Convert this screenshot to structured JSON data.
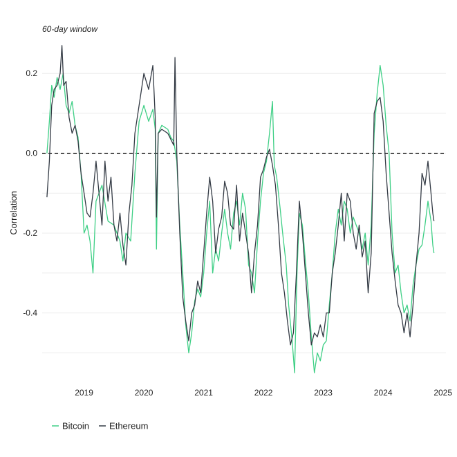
{
  "chart_data": {
    "type": "line",
    "title": "",
    "subtitle": "60-day window",
    "xlabel": "",
    "ylabel": "Correlation",
    "xlim": [
      2018.3,
      2025.05
    ],
    "ylim": [
      -0.56,
      0.28
    ],
    "x_ticks": [
      2019,
      2020,
      2021,
      2022,
      2023,
      2024,
      2025
    ],
    "x_tick_labels": [
      "2019",
      "2020",
      "2021",
      "2022",
      "2023",
      "2024",
      "2025"
    ],
    "y_ticks": [
      0.2,
      0.0,
      -0.2,
      -0.4
    ],
    "y_tick_labels": [
      "0.2",
      "0.0",
      "-0.2",
      "-0.4"
    ],
    "reference_line": {
      "y": 0.0,
      "style": "dashed",
      "color": "#000000"
    },
    "grid": "horizontal",
    "legend_position": "bottom-left",
    "series": [
      {
        "name": "Bitcoin",
        "color": "#3ecf85",
        "points": [
          [
            2018.38,
            0.0
          ],
          [
            2018.42,
            0.08
          ],
          [
            2018.46,
            0.17
          ],
          [
            2018.5,
            0.14
          ],
          [
            2018.55,
            0.19
          ],
          [
            2018.6,
            0.16
          ],
          [
            2018.65,
            0.2
          ],
          [
            2018.7,
            0.12
          ],
          [
            2018.75,
            0.1
          ],
          [
            2018.8,
            0.13
          ],
          [
            2018.85,
            0.07
          ],
          [
            2018.9,
            0.04
          ],
          [
            2018.95,
            -0.05
          ],
          [
            2019.0,
            -0.2
          ],
          [
            2019.05,
            -0.18
          ],
          [
            2019.1,
            -0.22
          ],
          [
            2019.15,
            -0.3
          ],
          [
            2019.2,
            -0.12
          ],
          [
            2019.3,
            -0.08
          ],
          [
            2019.4,
            -0.17
          ],
          [
            2019.5,
            -0.18
          ],
          [
            2019.6,
            -0.22
          ],
          [
            2019.65,
            -0.27
          ],
          [
            2019.7,
            -0.2
          ],
          [
            2019.78,
            -0.22
          ],
          [
            2019.85,
            -0.05
          ],
          [
            2019.92,
            0.08
          ],
          [
            2020.0,
            0.12
          ],
          [
            2020.08,
            0.08
          ],
          [
            2020.15,
            0.11
          ],
          [
            2020.19,
            0.06
          ],
          [
            2020.21,
            -0.24
          ],
          [
            2020.24,
            0.05
          ],
          [
            2020.3,
            0.07
          ],
          [
            2020.4,
            0.06
          ],
          [
            2020.45,
            0.04
          ],
          [
            2020.5,
            0.03
          ],
          [
            2020.55,
            -0.02
          ],
          [
            2020.6,
            -0.18
          ],
          [
            2020.65,
            -0.3
          ],
          [
            2020.7,
            -0.43
          ],
          [
            2020.75,
            -0.5
          ],
          [
            2020.8,
            -0.45
          ],
          [
            2020.85,
            -0.37
          ],
          [
            2020.9,
            -0.34
          ],
          [
            2020.95,
            -0.36
          ],
          [
            2021.0,
            -0.3
          ],
          [
            2021.05,
            -0.2
          ],
          [
            2021.1,
            -0.12
          ],
          [
            2021.15,
            -0.3
          ],
          [
            2021.2,
            -0.24
          ],
          [
            2021.25,
            -0.27
          ],
          [
            2021.3,
            -0.2
          ],
          [
            2021.35,
            -0.14
          ],
          [
            2021.4,
            -0.2
          ],
          [
            2021.45,
            -0.24
          ],
          [
            2021.5,
            -0.15
          ],
          [
            2021.55,
            -0.12
          ],
          [
            2021.6,
            -0.18
          ],
          [
            2021.65,
            -0.1
          ],
          [
            2021.7,
            -0.14
          ],
          [
            2021.75,
            -0.28
          ],
          [
            2021.8,
            -0.3
          ],
          [
            2021.85,
            -0.35
          ],
          [
            2021.9,
            -0.22
          ],
          [
            2021.95,
            -0.12
          ],
          [
            2022.0,
            -0.05
          ],
          [
            2022.05,
            -0.02
          ],
          [
            2022.1,
            0.05
          ],
          [
            2022.15,
            0.13
          ],
          [
            2022.18,
            -0.03
          ],
          [
            2022.22,
            -0.06
          ],
          [
            2022.28,
            -0.14
          ],
          [
            2022.32,
            -0.2
          ],
          [
            2022.38,
            -0.28
          ],
          [
            2022.42,
            -0.38
          ],
          [
            2022.48,
            -0.47
          ],
          [
            2022.52,
            -0.55
          ],
          [
            2022.56,
            -0.3
          ],
          [
            2022.6,
            -0.15
          ],
          [
            2022.65,
            -0.18
          ],
          [
            2022.7,
            -0.27
          ],
          [
            2022.75,
            -0.35
          ],
          [
            2022.8,
            -0.46
          ],
          [
            2022.85,
            -0.55
          ],
          [
            2022.9,
            -0.5
          ],
          [
            2022.95,
            -0.52
          ],
          [
            2023.0,
            -0.48
          ],
          [
            2023.05,
            -0.47
          ],
          [
            2023.1,
            -0.38
          ],
          [
            2023.15,
            -0.3
          ],
          [
            2023.2,
            -0.2
          ],
          [
            2023.25,
            -0.14
          ],
          [
            2023.3,
            -0.18
          ],
          [
            2023.35,
            -0.12
          ],
          [
            2023.4,
            -0.14
          ],
          [
            2023.45,
            -0.2
          ],
          [
            2023.5,
            -0.16
          ],
          [
            2023.55,
            -0.18
          ],
          [
            2023.6,
            -0.2
          ],
          [
            2023.65,
            -0.24
          ],
          [
            2023.7,
            -0.2
          ],
          [
            2023.75,
            -0.28
          ],
          [
            2023.8,
            -0.18
          ],
          [
            2023.85,
            0.05
          ],
          [
            2023.9,
            0.15
          ],
          [
            2023.95,
            0.22
          ],
          [
            2024.0,
            0.17
          ],
          [
            2024.05,
            0.07
          ],
          [
            2024.1,
            0.0
          ],
          [
            2024.15,
            -0.2
          ],
          [
            2024.2,
            -0.3
          ],
          [
            2024.25,
            -0.28
          ],
          [
            2024.3,
            -0.35
          ],
          [
            2024.35,
            -0.4
          ],
          [
            2024.4,
            -0.38
          ],
          [
            2024.45,
            -0.42
          ],
          [
            2024.5,
            -0.33
          ],
          [
            2024.55,
            -0.28
          ],
          [
            2024.6,
            -0.24
          ],
          [
            2024.65,
            -0.23
          ],
          [
            2024.7,
            -0.18
          ],
          [
            2024.75,
            -0.12
          ],
          [
            2024.8,
            -0.17
          ],
          [
            2024.83,
            -0.23
          ],
          [
            2024.85,
            -0.25
          ]
        ]
      },
      {
        "name": "Ethereum",
        "color": "#333a44",
        "points": [
          [
            2018.38,
            -0.11
          ],
          [
            2018.42,
            -0.02
          ],
          [
            2018.46,
            0.12
          ],
          [
            2018.5,
            0.16
          ],
          [
            2018.55,
            0.17
          ],
          [
            2018.6,
            0.2
          ],
          [
            2018.63,
            0.27
          ],
          [
            2018.66,
            0.17
          ],
          [
            2018.7,
            0.18
          ],
          [
            2018.75,
            0.09
          ],
          [
            2018.8,
            0.05
          ],
          [
            2018.85,
            0.07
          ],
          [
            2018.9,
            0.03
          ],
          [
            2018.95,
            -0.05
          ],
          [
            2019.0,
            -0.1
          ],
          [
            2019.05,
            -0.15
          ],
          [
            2019.1,
            -0.16
          ],
          [
            2019.15,
            -0.1
          ],
          [
            2019.2,
            -0.02
          ],
          [
            2019.25,
            -0.1
          ],
          [
            2019.3,
            -0.18
          ],
          [
            2019.35,
            -0.02
          ],
          [
            2019.4,
            -0.12
          ],
          [
            2019.45,
            -0.06
          ],
          [
            2019.5,
            -0.18
          ],
          [
            2019.55,
            -0.22
          ],
          [
            2019.6,
            -0.15
          ],
          [
            2019.65,
            -0.23
          ],
          [
            2019.7,
            -0.28
          ],
          [
            2019.75,
            -0.15
          ],
          [
            2019.8,
            -0.08
          ],
          [
            2019.85,
            0.05
          ],
          [
            2019.92,
            0.12
          ],
          [
            2020.0,
            0.2
          ],
          [
            2020.08,
            0.16
          ],
          [
            2020.15,
            0.22
          ],
          [
            2020.19,
            0.09
          ],
          [
            2020.21,
            -0.16
          ],
          [
            2020.24,
            0.05
          ],
          [
            2020.3,
            0.06
          ],
          [
            2020.4,
            0.05
          ],
          [
            2020.5,
            0.02
          ],
          [
            2020.52,
            0.24
          ],
          [
            2020.55,
            0.0
          ],
          [
            2020.6,
            -0.2
          ],
          [
            2020.65,
            -0.36
          ],
          [
            2020.7,
            -0.42
          ],
          [
            2020.75,
            -0.47
          ],
          [
            2020.8,
            -0.4
          ],
          [
            2020.85,
            -0.38
          ],
          [
            2020.9,
            -0.32
          ],
          [
            2020.95,
            -0.35
          ],
          [
            2021.0,
            -0.25
          ],
          [
            2021.05,
            -0.15
          ],
          [
            2021.1,
            -0.06
          ],
          [
            2021.15,
            -0.12
          ],
          [
            2021.2,
            -0.25
          ],
          [
            2021.25,
            -0.19
          ],
          [
            2021.3,
            -0.16
          ],
          [
            2021.35,
            -0.07
          ],
          [
            2021.4,
            -0.1
          ],
          [
            2021.45,
            -0.18
          ],
          [
            2021.5,
            -0.19
          ],
          [
            2021.55,
            -0.08
          ],
          [
            2021.6,
            -0.22
          ],
          [
            2021.65,
            -0.15
          ],
          [
            2021.7,
            -0.2
          ],
          [
            2021.75,
            -0.25
          ],
          [
            2021.8,
            -0.35
          ],
          [
            2021.85,
            -0.25
          ],
          [
            2021.9,
            -0.18
          ],
          [
            2021.95,
            -0.06
          ],
          [
            2022.0,
            -0.04
          ],
          [
            2022.05,
            -0.01
          ],
          [
            2022.1,
            0.01
          ],
          [
            2022.15,
            -0.03
          ],
          [
            2022.2,
            -0.08
          ],
          [
            2022.25,
            -0.18
          ],
          [
            2022.3,
            -0.3
          ],
          [
            2022.35,
            -0.35
          ],
          [
            2022.4,
            -0.42
          ],
          [
            2022.45,
            -0.48
          ],
          [
            2022.5,
            -0.45
          ],
          [
            2022.55,
            -0.3
          ],
          [
            2022.6,
            -0.12
          ],
          [
            2022.65,
            -0.2
          ],
          [
            2022.7,
            -0.3
          ],
          [
            2022.75,
            -0.4
          ],
          [
            2022.8,
            -0.48
          ],
          [
            2022.85,
            -0.45
          ],
          [
            2022.9,
            -0.46
          ],
          [
            2022.95,
            -0.43
          ],
          [
            2023.0,
            -0.46
          ],
          [
            2023.05,
            -0.4
          ],
          [
            2023.1,
            -0.4
          ],
          [
            2023.15,
            -0.3
          ],
          [
            2023.2,
            -0.25
          ],
          [
            2023.25,
            -0.18
          ],
          [
            2023.3,
            -0.1
          ],
          [
            2023.35,
            -0.22
          ],
          [
            2023.4,
            -0.1
          ],
          [
            2023.45,
            -0.12
          ],
          [
            2023.5,
            -0.2
          ],
          [
            2023.55,
            -0.24
          ],
          [
            2023.6,
            -0.18
          ],
          [
            2023.65,
            -0.26
          ],
          [
            2023.7,
            -0.22
          ],
          [
            2023.75,
            -0.35
          ],
          [
            2023.8,
            -0.25
          ],
          [
            2023.85,
            0.1
          ],
          [
            2023.9,
            0.13
          ],
          [
            2023.95,
            0.14
          ],
          [
            2024.0,
            0.08
          ],
          [
            2024.05,
            -0.05
          ],
          [
            2024.1,
            -0.15
          ],
          [
            2024.15,
            -0.25
          ],
          [
            2024.2,
            -0.32
          ],
          [
            2024.25,
            -0.38
          ],
          [
            2024.3,
            -0.4
          ],
          [
            2024.35,
            -0.45
          ],
          [
            2024.4,
            -0.4
          ],
          [
            2024.45,
            -0.46
          ],
          [
            2024.5,
            -0.38
          ],
          [
            2024.55,
            -0.28
          ],
          [
            2024.6,
            -0.2
          ],
          [
            2024.65,
            -0.05
          ],
          [
            2024.7,
            -0.08
          ],
          [
            2024.75,
            -0.02
          ],
          [
            2024.8,
            -0.1
          ],
          [
            2024.83,
            -0.15
          ],
          [
            2024.85,
            -0.17
          ]
        ]
      }
    ]
  }
}
